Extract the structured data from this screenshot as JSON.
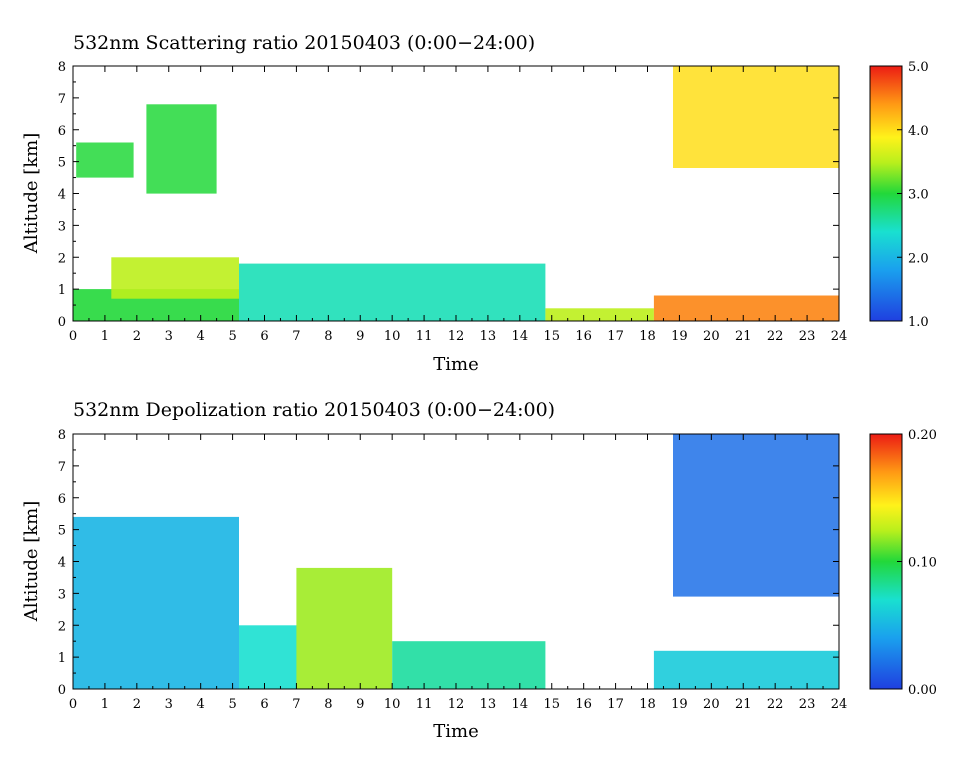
{
  "chart_data": [
    {
      "type": "heatmap",
      "title": "532nm Scattering ratio  20150403 (0:00−24:00)",
      "xlabel": "Time",
      "ylabel": "Altitude [km]",
      "xlim": [
        0,
        24
      ],
      "ylim": [
        0,
        8
      ],
      "x_ticks": [
        "0",
        "1",
        "2",
        "3",
        "4",
        "5",
        "6",
        "7",
        "8",
        "9",
        "10",
        "11",
        "12",
        "13",
        "14",
        "15",
        "16",
        "17",
        "18",
        "19",
        "20",
        "21",
        "22",
        "23",
        "24"
      ],
      "y_ticks": [
        "0",
        "1",
        "2",
        "3",
        "4",
        "5",
        "6",
        "7",
        "8"
      ],
      "colorbar": {
        "min": 1.0,
        "max": 5.0,
        "ticks": [
          "1.0",
          "2.0",
          "3.0",
          "4.0",
          "5.0"
        ]
      },
      "features": [
        {
          "kind": "layer",
          "t": [
            0,
            5.2
          ],
          "z": [
            0,
            1.0
          ],
          "value": 3.0
        },
        {
          "kind": "layer",
          "t": [
            1.2,
            5.2
          ],
          "z": [
            0.7,
            2.0
          ],
          "value": 3.5
        },
        {
          "kind": "layer",
          "t": [
            5.2,
            14.8
          ],
          "z": [
            0,
            1.8
          ],
          "value": 2.5
        },
        {
          "kind": "layer",
          "t": [
            14.8,
            18.2
          ],
          "z": [
            0,
            0.4
          ],
          "value": 3.5
        },
        {
          "kind": "layer",
          "t": [
            18.2,
            24
          ],
          "z": [
            0,
            0.8
          ],
          "value": 4.5
        },
        {
          "kind": "cloud",
          "t": [
            0.1,
            1.9
          ],
          "z": [
            4.5,
            5.6
          ],
          "value": 3.0
        },
        {
          "kind": "cloud",
          "t": [
            2.3,
            4.5
          ],
          "z": [
            4.0,
            6.8
          ],
          "value": 3.0
        },
        {
          "kind": "cloud",
          "t": [
            18.8,
            24
          ],
          "z": [
            4.8,
            8.0
          ],
          "value": 4.0
        }
      ]
    },
    {
      "type": "heatmap",
      "title": "532nm Depolization ratio  20150403 (0:00−24:00)",
      "xlabel": "Time",
      "ylabel": "Altitude [km]",
      "xlim": [
        0,
        24
      ],
      "ylim": [
        0,
        8
      ],
      "x_ticks": [
        "0",
        "1",
        "2",
        "3",
        "4",
        "5",
        "6",
        "7",
        "8",
        "9",
        "10",
        "11",
        "12",
        "13",
        "14",
        "15",
        "16",
        "17",
        "18",
        "19",
        "20",
        "21",
        "22",
        "23",
        "24"
      ],
      "y_ticks": [
        "0",
        "1",
        "2",
        "3",
        "4",
        "5",
        "6",
        "7",
        "8"
      ],
      "colorbar": {
        "min": 0.0,
        "max": 0.2,
        "ticks": [
          "0.00",
          "0.10",
          "0.20"
        ]
      },
      "features": [
        {
          "kind": "layer",
          "t": [
            0,
            5.2
          ],
          "z": [
            0,
            5.4
          ],
          "value": 0.05
        },
        {
          "kind": "layer",
          "t": [
            5.2,
            7.0
          ],
          "z": [
            0,
            2.0
          ],
          "value": 0.07
        },
        {
          "kind": "layer",
          "t": [
            7.0,
            10.0
          ],
          "z": [
            0,
            3.8
          ],
          "value": 0.12
        },
        {
          "kind": "layer",
          "t": [
            10.0,
            14.8
          ],
          "z": [
            0,
            1.5
          ],
          "value": 0.08
        },
        {
          "kind": "layer",
          "t": [
            18.2,
            24
          ],
          "z": [
            0,
            1.2
          ],
          "value": 0.06
        },
        {
          "kind": "cloud",
          "t": [
            18.8,
            24
          ],
          "z": [
            2.9,
            8.0
          ],
          "value": 0.02
        }
      ]
    }
  ]
}
